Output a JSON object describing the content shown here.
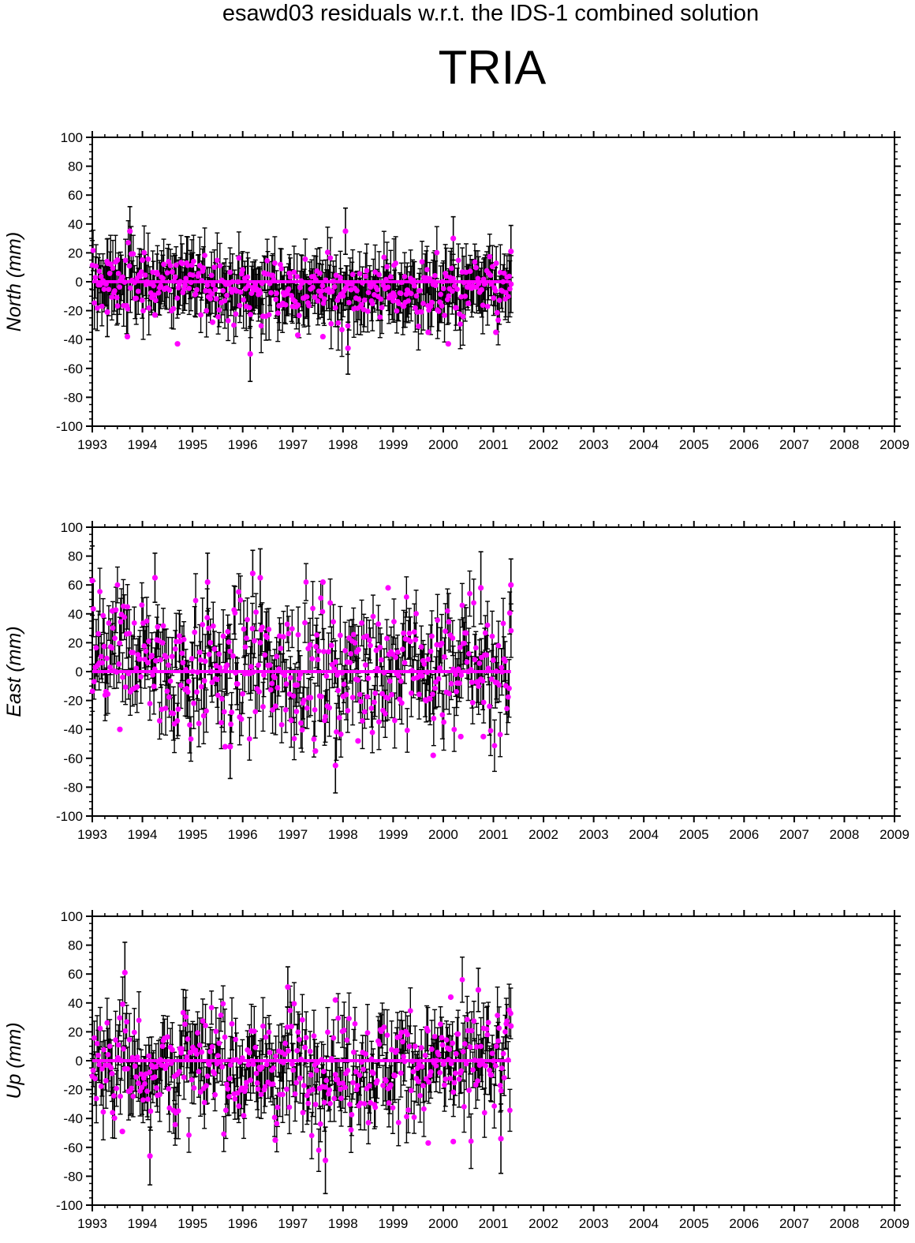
{
  "figure": {
    "title": "esawd03 residuals w.r.t. the IDS-1 combined solution",
    "station": "TRIA"
  },
  "chart_data": [
    {
      "type": "scatter",
      "ylabel": "North (mm)",
      "xlim": [
        1993,
        2009
      ],
      "ylim": [
        -100,
        100
      ],
      "x_ticks": [
        "1993",
        "1994",
        "1995",
        "1996",
        "1997",
        "1998",
        "1999",
        "2000",
        "2001",
        "2002",
        "2003",
        "2004",
        "2005",
        "2006",
        "2007",
        "2008",
        "2009"
      ],
      "y_ticks": [
        "100",
        "80",
        "60",
        "40",
        "20",
        "0",
        "-20",
        "-40",
        "-60",
        "-80",
        "-100"
      ],
      "data_range": [
        1993.0,
        2001.35
      ],
      "zero_line": true,
      "series": [
        {
          "style": "points with error bars",
          "points": [
            [
              1993.3,
              -21
            ],
            [
              1993.5,
              15
            ],
            [
              1993.7,
              -38
            ],
            [
              1993.75,
              35
            ],
            [
              1994.0,
              15
            ],
            [
              1994.25,
              -23
            ],
            [
              1994.7,
              -43
            ],
            [
              1995.4,
              -28
            ],
            [
              1996.15,
              -50
            ],
            [
              1996.8,
              -15
            ],
            [
              1997.1,
              -37
            ],
            [
              1997.6,
              -38
            ],
            [
              1998.1,
              -46
            ],
            [
              1998.05,
              35
            ],
            [
              1999.0,
              -8
            ],
            [
              1999.7,
              -35
            ],
            [
              2000.1,
              -43
            ],
            [
              2000.2,
              30
            ],
            [
              2000.5,
              -15
            ],
            [
              2001.05,
              -35
            ],
            [
              2001.35,
              21
            ]
          ],
          "error_bars": [
            [
              1993.3,
              -21,
              17
            ],
            [
              1993.75,
              35,
              17
            ],
            [
              1996.15,
              -50,
              19
            ],
            [
              1998.05,
              35,
              16
            ],
            [
              1998.1,
              -46,
              18
            ],
            [
              2000.2,
              30,
              15
            ],
            [
              2001.35,
              21,
              18
            ]
          ]
        }
      ]
    },
    {
      "type": "scatter",
      "ylabel": "East (mm)",
      "xlim": [
        1993,
        2009
      ],
      "ylim": [
        -100,
        100
      ],
      "x_ticks": [
        "1993",
        "1994",
        "1995",
        "1996",
        "1997",
        "1998",
        "1999",
        "2000",
        "2001",
        "2002",
        "2003",
        "2004",
        "2005",
        "2006",
        "2007",
        "2008",
        "2009"
      ],
      "y_ticks": [
        "100",
        "80",
        "60",
        "40",
        "20",
        "0",
        "-20",
        "-40",
        "-60",
        "-80",
        "-100"
      ],
      "data_range": [
        1993.0,
        2001.35
      ],
      "zero_line": true,
      "series": [
        {
          "style": "points with error bars",
          "points": [
            [
              1993.0,
              63
            ],
            [
              1993.4,
              42
            ],
            [
              1993.55,
              -40
            ],
            [
              1994.25,
              65
            ],
            [
              1995.3,
              62
            ],
            [
              1995.65,
              -52
            ],
            [
              1995.75,
              -52
            ],
            [
              1996.2,
              68
            ],
            [
              1996.35,
              65
            ],
            [
              1997.45,
              -55
            ],
            [
              1997.6,
              62
            ],
            [
              1997.85,
              -65
            ],
            [
              1998.3,
              -48
            ],
            [
              1998.9,
              58
            ],
            [
              1999.8,
              -58
            ],
            [
              2000.35,
              -45
            ],
            [
              2000.75,
              58
            ],
            [
              2000.8,
              -45
            ],
            [
              2001.35,
              60
            ]
          ],
          "error_bars": [
            [
              1993.0,
              63,
              24
            ],
            [
              1994.25,
              65,
              17
            ],
            [
              1995.3,
              62,
              20
            ],
            [
              1995.75,
              -52,
              22
            ],
            [
              1996.2,
              68,
              16
            ],
            [
              1996.35,
              65,
              20
            ],
            [
              1997.85,
              -65,
              19
            ],
            [
              2000.75,
              58,
              25
            ],
            [
              2001.35,
              60,
              18
            ]
          ]
        }
      ]
    },
    {
      "type": "scatter",
      "ylabel": "Up (mm)",
      "xlim": [
        1993,
        2009
      ],
      "ylim": [
        -100,
        100
      ],
      "x_ticks": [
        "1993",
        "1994",
        "1995",
        "1996",
        "1997",
        "1998",
        "1999",
        "2000",
        "2001",
        "2002",
        "2003",
        "2004",
        "2005",
        "2006",
        "2007",
        "2008",
        "2009"
      ],
      "y_ticks": [
        "100",
        "80",
        "60",
        "40",
        "20",
        "0",
        "-20",
        "-40",
        "-60",
        "-80",
        "-100"
      ],
      "data_range": [
        1993.0,
        2001.35
      ],
      "zero_line": true,
      "series": [
        {
          "style": "points with error bars",
          "points": [
            [
              1993.65,
              61
            ],
            [
              1993.6,
              -49
            ],
            [
              1994.15,
              -66
            ],
            [
              1996.65,
              -55
            ],
            [
              1996.9,
              51
            ],
            [
              1997.65,
              -69
            ],
            [
              1997.85,
              42
            ],
            [
              1999.7,
              -57
            ],
            [
              2000.15,
              44
            ],
            [
              2000.2,
              -56
            ],
            [
              2000.7,
              49
            ],
            [
              2001.15,
              -54
            ],
            [
              2001.35,
              24
            ]
          ],
          "error_bars": [
            [
              1993.65,
              61,
              21
            ],
            [
              1994.15,
              -66,
              20
            ],
            [
              1996.9,
              51,
              14
            ],
            [
              1997.65,
              -69,
              23
            ],
            [
              2000.7,
              49,
              15
            ],
            [
              2001.15,
              -54,
              24
            ]
          ]
        }
      ]
    }
  ]
}
